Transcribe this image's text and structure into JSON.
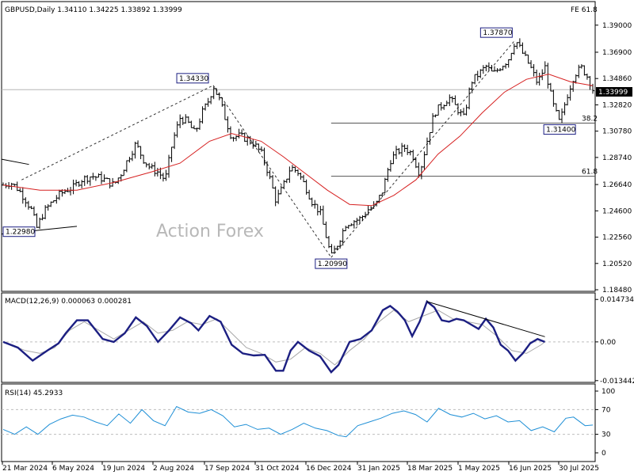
{
  "chart_data": [
    {
      "type": "ohlc",
      "title": "GBPUSD,Daily  1.34110 1.34225 1.33892 1.33999",
      "watermark": "Action Forex",
      "current_price": "1.33999",
      "fib_label": "FE 61.8",
      "y_ticks": [
        "1.39000",
        "1.36900",
        "1.34860",
        "1.32820",
        "1.30780",
        "1.28740",
        "1.26640",
        "1.24600",
        "1.22560",
        "1.20520",
        "1.18480"
      ],
      "ylim": [
        1.1848,
        1.396
      ],
      "x_ticks": [
        "21 Mar 2024",
        "6 May 2024",
        "19 Jun 2024",
        "2 Aug 2024",
        "17 Sep 2024",
        "31 Oct 2024",
        "16 Dec 2024",
        "31 Jan 2025",
        "18 Mar 2025",
        "1 May 2025",
        "16 Jun 2025",
        "30 Jul 2025"
      ],
      "price_path": [
        [
          0,
          1.266
        ],
        [
          2,
          1.268
        ],
        [
          4,
          1.263
        ],
        [
          6,
          1.255
        ],
        [
          8,
          1.245
        ],
        [
          9,
          1.232
        ],
        [
          11,
          1.245
        ],
        [
          13,
          1.252
        ],
        [
          15,
          1.258
        ],
        [
          17,
          1.262
        ],
        [
          19,
          1.264
        ],
        [
          21,
          1.27
        ],
        [
          24,
          1.273
        ],
        [
          27,
          1.271
        ],
        [
          30,
          1.266
        ],
        [
          32,
          1.275
        ],
        [
          34,
          1.287
        ],
        [
          36,
          1.298
        ],
        [
          38,
          1.286
        ],
        [
          40,
          1.279
        ],
        [
          42,
          1.276
        ],
        [
          44,
          1.27
        ],
        [
          46,
          1.3
        ],
        [
          48,
          1.318
        ],
        [
          50,
          1.315
        ],
        [
          52,
          1.306
        ],
        [
          54,
          1.322
        ],
        [
          56,
          1.333
        ],
        [
          57,
          1.3433
        ],
        [
          59,
          1.33
        ],
        [
          60,
          1.32
        ],
        [
          62,
          1.303
        ],
        [
          64,
          1.304
        ],
        [
          66,
          1.302
        ],
        [
          68,
          1.298
        ],
        [
          70,
          1.291
        ],
        [
          72,
          1.275
        ],
        [
          74,
          1.254
        ],
        [
          76,
          1.265
        ],
        [
          78,
          1.28
        ],
        [
          80,
          1.276
        ],
        [
          82,
          1.265
        ],
        [
          84,
          1.252
        ],
        [
          86,
          1.245
        ],
        [
          88,
          1.222
        ],
        [
          89,
          1.2099
        ],
        [
          91,
          1.222
        ],
        [
          93,
          1.236
        ],
        [
          95,
          1.238
        ],
        [
          97,
          1.24
        ],
        [
          99,
          1.247
        ],
        [
          101,
          1.25
        ],
        [
          103,
          1.262
        ],
        [
          105,
          1.285
        ],
        [
          107,
          1.292
        ],
        [
          109,
          1.295
        ],
        [
          111,
          1.29
        ],
        [
          113,
          1.275
        ],
        [
          115,
          1.3
        ],
        [
          117,
          1.322
        ],
        [
          119,
          1.328
        ],
        [
          121,
          1.334
        ],
        [
          123,
          1.326
        ],
        [
          125,
          1.318
        ],
        [
          127,
          1.346
        ],
        [
          129,
          1.352
        ],
        [
          131,
          1.358
        ],
        [
          133,
          1.352
        ],
        [
          135,
          1.358
        ],
        [
          137,
          1.363
        ],
        [
          139,
          1.3787
        ],
        [
          141,
          1.368
        ],
        [
          143,
          1.358
        ],
        [
          145,
          1.345
        ],
        [
          147,
          1.358
        ],
        [
          149,
          1.33
        ],
        [
          151,
          1.314
        ],
        [
          153,
          1.335
        ],
        [
          155,
          1.352
        ],
        [
          157,
          1.357
        ],
        [
          159,
          1.348
        ],
        [
          160,
          1.34
        ]
      ],
      "ma_path": [
        [
          0,
          1.266
        ],
        [
          10,
          1.262
        ],
        [
          20,
          1.262
        ],
        [
          30,
          1.268
        ],
        [
          40,
          1.276
        ],
        [
          48,
          1.283
        ],
        [
          56,
          1.3
        ],
        [
          62,
          1.306
        ],
        [
          70,
          1.3
        ],
        [
          76,
          1.288
        ],
        [
          82,
          1.275
        ],
        [
          88,
          1.262
        ],
        [
          94,
          1.251
        ],
        [
          100,
          1.25
        ],
        [
          106,
          1.258
        ],
        [
          112,
          1.27
        ],
        [
          118,
          1.29
        ],
        [
          124,
          1.304
        ],
        [
          130,
          1.322
        ],
        [
          136,
          1.338
        ],
        [
          142,
          1.348
        ],
        [
          148,
          1.352
        ],
        [
          154,
          1.346
        ],
        [
          160,
          1.343
        ]
      ],
      "annotations": [
        {
          "text": "1.22980",
          "x": 0,
          "y": 1.2298
        },
        {
          "text": "1.34330",
          "x": 57,
          "y": 1.3433
        },
        {
          "text": "1.20990",
          "x": 89,
          "y": 1.2099
        },
        {
          "text": "1.37870",
          "x": 139,
          "y": 1.3787
        },
        {
          "text": "1.31400",
          "x": 151,
          "y": 1.314
        }
      ],
      "fib_levels": [
        {
          "label": "38.2",
          "y": 1.314
        },
        {
          "label": "61.8",
          "y": 1.2728
        }
      ],
      "horizontal_line": 1.33999
    },
    {
      "type": "line",
      "title": "MACD(12,26,9) 0.000063 0.000281",
      "y_ticks": [
        "0.014734",
        "0.00",
        "-0.013442"
      ],
      "ylim": [
        -0.0135,
        0.0148
      ],
      "macd_path": [
        [
          0,
          0.0
        ],
        [
          4,
          -0.002
        ],
        [
          8,
          -0.0065
        ],
        [
          12,
          -0.003
        ],
        [
          15,
          -0.0005
        ],
        [
          17,
          0.003
        ],
        [
          20,
          0.0075
        ],
        [
          23,
          0.0075
        ],
        [
          27,
          0.001
        ],
        [
          30,
          0.0
        ],
        [
          33,
          0.003
        ],
        [
          36,
          0.0085
        ],
        [
          39,
          0.0055
        ],
        [
          42,
          0.0
        ],
        [
          45,
          0.004
        ],
        [
          48,
          0.0085
        ],
        [
          51,
          0.0065
        ],
        [
          53,
          0.004
        ],
        [
          56,
          0.009
        ],
        [
          59,
          0.007
        ],
        [
          62,
          -0.001
        ],
        [
          65,
          -0.004
        ],
        [
          68,
          -0.0047
        ],
        [
          71,
          -0.0045
        ],
        [
          74,
          -0.01
        ],
        [
          76,
          -0.01
        ],
        [
          78,
          -0.003
        ],
        [
          80,
          0.0
        ],
        [
          83,
          -0.003
        ],
        [
          86,
          -0.005
        ],
        [
          89,
          -0.0105
        ],
        [
          91,
          -0.008
        ],
        [
          94,
          0.0
        ],
        [
          97,
          0.001
        ],
        [
          100,
          0.004
        ],
        [
          103,
          0.011
        ],
        [
          105,
          0.0125
        ],
        [
          107,
          0.0105
        ],
        [
          109,
          0.0075
        ],
        [
          111,
          0.002
        ],
        [
          113,
          0.007
        ],
        [
          115,
          0.014
        ],
        [
          117,
          0.012
        ],
        [
          119,
          0.0075
        ],
        [
          121,
          0.007
        ],
        [
          123,
          0.008
        ],
        [
          125,
          0.0075
        ],
        [
          127,
          0.006
        ],
        [
          129,
          0.0045
        ],
        [
          131,
          0.008
        ],
        [
          133,
          0.005
        ],
        [
          135,
          -0.001
        ],
        [
          137,
          -0.003
        ],
        [
          139,
          -0.0065
        ],
        [
          141,
          -0.004
        ],
        [
          143,
          -0.0005
        ],
        [
          145,
          0.001
        ],
        [
          147,
          0.0
        ]
      ],
      "signal_path": [
        [
          0,
          0.0
        ],
        [
          6,
          -0.003
        ],
        [
          10,
          -0.004
        ],
        [
          14,
          -0.002
        ],
        [
          18,
          0.004
        ],
        [
          22,
          0.007
        ],
        [
          26,
          0.004
        ],
        [
          30,
          0.001
        ],
        [
          34,
          0.004
        ],
        [
          38,
          0.007
        ],
        [
          42,
          0.003
        ],
        [
          46,
          0.004
        ],
        [
          50,
          0.007
        ],
        [
          54,
          0.006
        ],
        [
          58,
          0.008
        ],
        [
          62,
          0.003
        ],
        [
          66,
          -0.002
        ],
        [
          70,
          -0.004
        ],
        [
          74,
          -0.007
        ],
        [
          78,
          -0.006
        ],
        [
          82,
          -0.002
        ],
        [
          86,
          -0.004
        ],
        [
          90,
          -0.008
        ],
        [
          94,
          -0.003
        ],
        [
          98,
          0.001
        ],
        [
          102,
          0.007
        ],
        [
          106,
          0.011
        ],
        [
          110,
          0.007
        ],
        [
          114,
          0.009
        ],
        [
          118,
          0.011
        ],
        [
          122,
          0.008
        ],
        [
          126,
          0.007
        ],
        [
          130,
          0.006
        ],
        [
          134,
          0.002
        ],
        [
          138,
          -0.003
        ],
        [
          142,
          -0.004
        ],
        [
          146,
          -0.001
        ],
        [
          147,
          0.0
        ]
      ],
      "trendline": [
        [
          115,
          0.014
        ],
        [
          147,
          0.0018
        ]
      ]
    },
    {
      "type": "line",
      "title": "RSI(14) 45.2933",
      "y_ticks": [
        "100",
        "70",
        "30",
        "0"
      ],
      "ylim": [
        0,
        100
      ],
      "levels": [
        70,
        30
      ],
      "rsi_path": [
        [
          0,
          38
        ],
        [
          3,
          30
        ],
        [
          6,
          42
        ],
        [
          9,
          30
        ],
        [
          12,
          46
        ],
        [
          15,
          55
        ],
        [
          18,
          61
        ],
        [
          21,
          58
        ],
        [
          24,
          50
        ],
        [
          27,
          44
        ],
        [
          30,
          63
        ],
        [
          33,
          48
        ],
        [
          36,
          70
        ],
        [
          39,
          52
        ],
        [
          42,
          44
        ],
        [
          45,
          75
        ],
        [
          48,
          66
        ],
        [
          51,
          64
        ],
        [
          54,
          70
        ],
        [
          57,
          60
        ],
        [
          60,
          42
        ],
        [
          63,
          46
        ],
        [
          66,
          38
        ],
        [
          69,
          40
        ],
        [
          72,
          30
        ],
        [
          75,
          38
        ],
        [
          78,
          48
        ],
        [
          81,
          40
        ],
        [
          84,
          36
        ],
        [
          87,
          28
        ],
        [
          89,
          26
        ],
        [
          92,
          44
        ],
        [
          95,
          50
        ],
        [
          98,
          56
        ],
        [
          101,
          64
        ],
        [
          104,
          68
        ],
        [
          107,
          62
        ],
        [
          110,
          50
        ],
        [
          113,
          72
        ],
        [
          116,
          62
        ],
        [
          119,
          58
        ],
        [
          122,
          64
        ],
        [
          125,
          55
        ],
        [
          128,
          60
        ],
        [
          131,
          50
        ],
        [
          134,
          52
        ],
        [
          137,
          36
        ],
        [
          140,
          42
        ],
        [
          143,
          34
        ],
        [
          146,
          56
        ],
        [
          148,
          58
        ],
        [
          151,
          44
        ],
        [
          153,
          45
        ]
      ]
    }
  ]
}
